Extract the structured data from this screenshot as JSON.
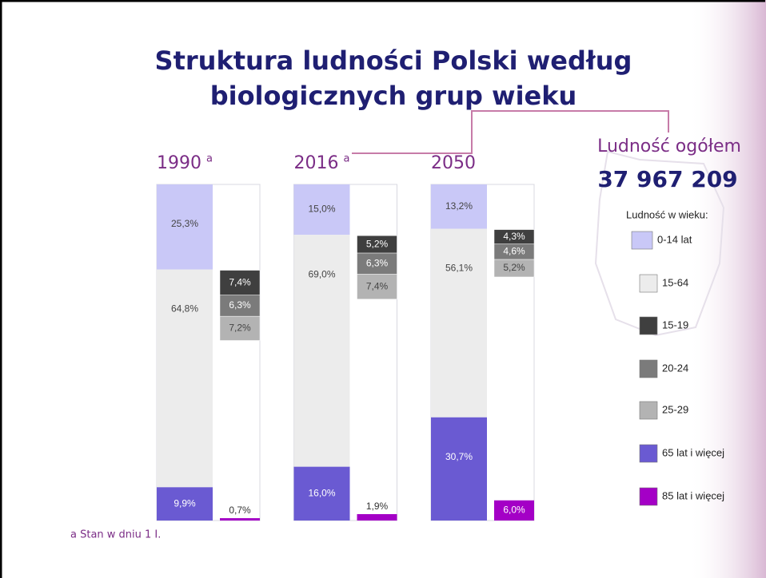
{
  "chart_data": {
    "type": "bar",
    "title": [
      "Struktura ludności Polski według",
      "biologicznych grup wieku"
    ],
    "categories": [
      "1990",
      "2016",
      "2050"
    ],
    "category_marks": [
      "a",
      "a",
      null
    ],
    "total_label": "Ludność ogółem",
    "total_value": "37 967 209",
    "legend_title": "Ludność w wieku:",
    "footnote": "a Stan w dniu 1 I.",
    "ylim": [
      0,
      100
    ],
    "series": [
      {
        "name": "0-14 lat",
        "color": "#c9c8f7",
        "group": "main",
        "values": [
          25.3,
          15.0,
          13.2
        ],
        "value_labels": [
          "25,3%",
          "15,0%",
          "13,2%"
        ]
      },
      {
        "name": "15-64",
        "color": "#ececec",
        "group": "main",
        "values": [
          64.8,
          69.0,
          56.1
        ],
        "value_labels": [
          "64,8%",
          "69,0%",
          "56,1%"
        ]
      },
      {
        "name": "15-19",
        "color": "#3f3f3f",
        "group": "side",
        "values": [
          7.4,
          5.2,
          4.3
        ],
        "value_labels": [
          "7,4%",
          "5,2%",
          "4,3%"
        ]
      },
      {
        "name": "20-24",
        "color": "#7b7b7b",
        "group": "side",
        "values": [
          6.3,
          6.3,
          4.6
        ],
        "value_labels": [
          "6,3%",
          "6,3%",
          "4,6%"
        ]
      },
      {
        "name": "25-29",
        "color": "#b3b3b3",
        "group": "side",
        "values": [
          7.2,
          7.4,
          5.2
        ],
        "value_labels": [
          "7,2%",
          "7,4%",
          "5,2%"
        ]
      },
      {
        "name": "65 lat i więcej",
        "color": "#6a5ad2",
        "group": "main",
        "values": [
          9.9,
          16.0,
          30.7
        ],
        "value_labels": [
          "9,9%",
          "16,0%",
          "30,7%"
        ]
      },
      {
        "name": "85 lat i więcej",
        "color": "#a400c6",
        "group": "bottom",
        "values": [
          0.7,
          1.9,
          6.0
        ],
        "value_labels": [
          "0,7%",
          "1,9%",
          "6,0%"
        ]
      }
    ]
  }
}
